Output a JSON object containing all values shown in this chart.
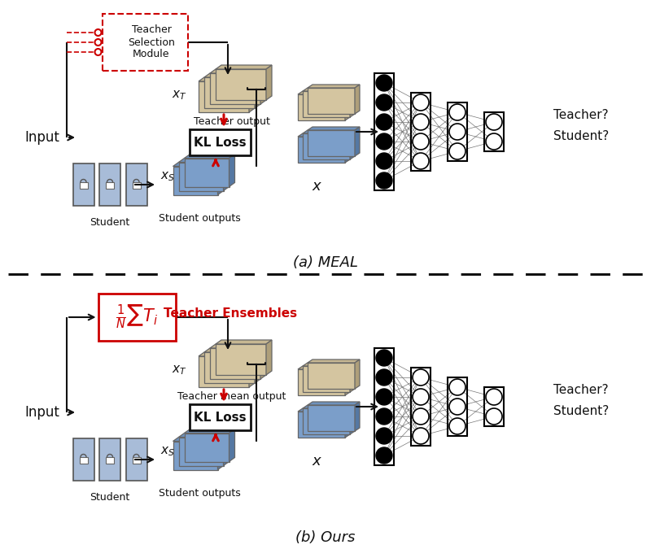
{
  "bg_color": "#ffffff",
  "tan_color": "#d4c5a0",
  "blue_color": "#7b9ec9",
  "red_color": "#cc0000",
  "dark_color": "#111111",
  "panel_a_label": "(a) MEAL",
  "panel_b_label": "(b) Ours",
  "teacher_sel_label": "Teacher\nSelection\nModule",
  "ensemble_label": "$\\frac{1}{N}\\sum T_i$",
  "ensemble_text": "Teacher Ensembles",
  "kl_loss_label": "KL Loss",
  "input_label": "Input",
  "student_label": "Student",
  "teacher_output_label": "Teacher output",
  "teacher_mean_output_label": "Teacher mean output",
  "student_outputs_label": "Student outputs",
  "x_label": "$x$",
  "xT_label": "$x_T$",
  "xS_label": "$x_S$",
  "teacher_q_label": "Teacher?",
  "student_q_label": "Student?"
}
